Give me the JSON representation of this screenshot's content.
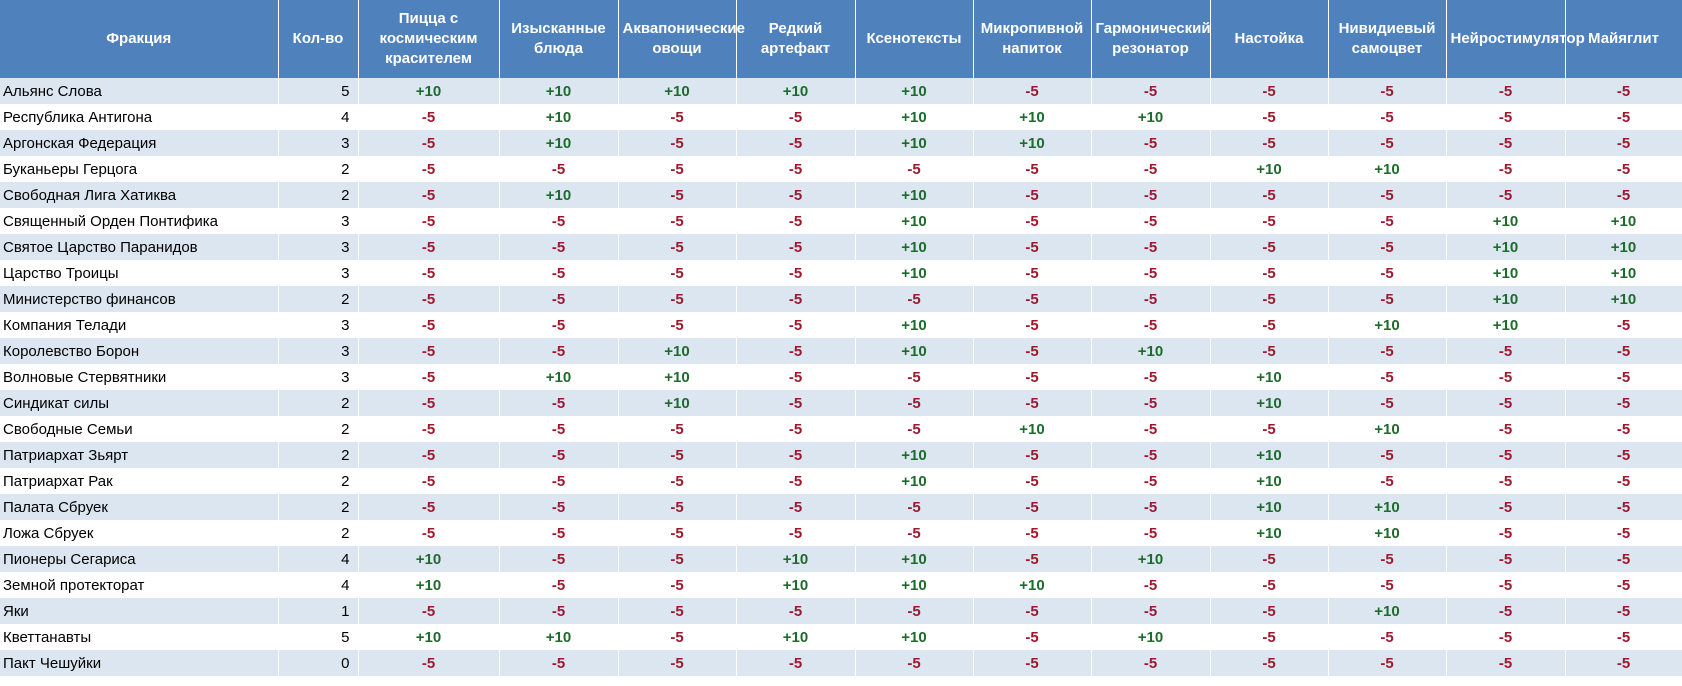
{
  "colors": {
    "header_bg": "#4f81bd",
    "row_alt": "#dce6f1",
    "positive": "#1e6b2e",
    "negative": "#a0182e"
  },
  "table": {
    "headers": [
      "Фракция",
      "Кол-во",
      "Пицца с космическим красителем",
      "Изысканные блюда",
      "Аквапонические овощи",
      "Редкий артефакт",
      "Ксенотексты",
      "Микропивной напиток",
      "Гармонический резонатор",
      "Настойка",
      "Нивидиевый самоцвет",
      "Нейростимулятор",
      "Майяглит"
    ],
    "rows": [
      {
        "faction": "Альянс Слова",
        "count": "5",
        "values": [
          "+10",
          "+10",
          "+10",
          "+10",
          "+10",
          "-5",
          "-5",
          "-5",
          "-5",
          "-5",
          "-5"
        ]
      },
      {
        "faction": "Республика Антигона",
        "count": "4",
        "values": [
          "-5",
          "+10",
          "-5",
          "-5",
          "+10",
          "+10",
          "+10",
          "-5",
          "-5",
          "-5",
          "-5"
        ]
      },
      {
        "faction": "Аргонская Федерация",
        "count": "3",
        "values": [
          "-5",
          "+10",
          "-5",
          "-5",
          "+10",
          "+10",
          "-5",
          "-5",
          "-5",
          "-5",
          "-5"
        ]
      },
      {
        "faction": "Буканьеры Герцога",
        "count": "2",
        "values": [
          "-5",
          "-5",
          "-5",
          "-5",
          "-5",
          "-5",
          "-5",
          "+10",
          "+10",
          "-5",
          "-5"
        ]
      },
      {
        "faction": "Свободная Лига Хатиква",
        "count": "2",
        "values": [
          "-5",
          "+10",
          "-5",
          "-5",
          "+10",
          "-5",
          "-5",
          "-5",
          "-5",
          "-5",
          "-5"
        ]
      },
      {
        "faction": "Священный Орден Понтифика",
        "count": "3",
        "values": [
          "-5",
          "-5",
          "-5",
          "-5",
          "+10",
          "-5",
          "-5",
          "-5",
          "-5",
          "+10",
          "+10"
        ]
      },
      {
        "faction": "Святое Царство Паранидов",
        "count": "3",
        "values": [
          "-5",
          "-5",
          "-5",
          "-5",
          "+10",
          "-5",
          "-5",
          "-5",
          "-5",
          "+10",
          "+10"
        ]
      },
      {
        "faction": "Царство Троицы",
        "count": "3",
        "values": [
          "-5",
          "-5",
          "-5",
          "-5",
          "+10",
          "-5",
          "-5",
          "-5",
          "-5",
          "+10",
          "+10"
        ]
      },
      {
        "faction": "Министерство финансов",
        "count": "2",
        "values": [
          "-5",
          "-5",
          "-5",
          "-5",
          "-5",
          "-5",
          "-5",
          "-5",
          "-5",
          "+10",
          "+10"
        ]
      },
      {
        "faction": "Компания Телади",
        "count": "3",
        "values": [
          "-5",
          "-5",
          "-5",
          "-5",
          "+10",
          "-5",
          "-5",
          "-5",
          "+10",
          "+10",
          "-5"
        ]
      },
      {
        "faction": "Королевство Борон",
        "count": "3",
        "values": [
          "-5",
          "-5",
          "+10",
          "-5",
          "+10",
          "-5",
          "+10",
          "-5",
          "-5",
          "-5",
          "-5"
        ]
      },
      {
        "faction": "Волновые Стервятники",
        "count": "3",
        "values": [
          "-5",
          "+10",
          "+10",
          "-5",
          "-5",
          "-5",
          "-5",
          "+10",
          "-5",
          "-5",
          "-5"
        ]
      },
      {
        "faction": "Синдикат силы",
        "count": "2",
        "values": [
          "-5",
          "-5",
          "+10",
          "-5",
          "-5",
          "-5",
          "-5",
          "+10",
          "-5",
          "-5",
          "-5"
        ]
      },
      {
        "faction": "Свободные Семьи",
        "count": "2",
        "values": [
          "-5",
          "-5",
          "-5",
          "-5",
          "-5",
          "+10",
          "-5",
          "-5",
          "+10",
          "-5",
          "-5"
        ]
      },
      {
        "faction": "Патриархат Зьярт",
        "count": "2",
        "values": [
          "-5",
          "-5",
          "-5",
          "-5",
          "+10",
          "-5",
          "-5",
          "+10",
          "-5",
          "-5",
          "-5"
        ]
      },
      {
        "faction": "Патриархат Рак",
        "count": "2",
        "values": [
          "-5",
          "-5",
          "-5",
          "-5",
          "+10",
          "-5",
          "-5",
          "+10",
          "-5",
          "-5",
          "-5"
        ]
      },
      {
        "faction": "Палата Сбруек",
        "count": "2",
        "values": [
          "-5",
          "-5",
          "-5",
          "-5",
          "-5",
          "-5",
          "-5",
          "+10",
          "+10",
          "-5",
          "-5"
        ]
      },
      {
        "faction": "Ложа Сбруек",
        "count": "2",
        "values": [
          "-5",
          "-5",
          "-5",
          "-5",
          "-5",
          "-5",
          "-5",
          "+10",
          "+10",
          "-5",
          "-5"
        ]
      },
      {
        "faction": "Пионеры Сегариса",
        "count": "4",
        "values": [
          "+10",
          "-5",
          "-5",
          "+10",
          "+10",
          "-5",
          "+10",
          "-5",
          "-5",
          "-5",
          "-5"
        ]
      },
      {
        "faction": "Земной протекторат",
        "count": "4",
        "values": [
          "+10",
          "-5",
          "-5",
          "+10",
          "+10",
          "+10",
          "-5",
          "-5",
          "-5",
          "-5",
          "-5"
        ]
      },
      {
        "faction": "Яки",
        "count": "1",
        "values": [
          "-5",
          "-5",
          "-5",
          "-5",
          "-5",
          "-5",
          "-5",
          "-5",
          "+10",
          "-5",
          "-5"
        ]
      },
      {
        "faction": "Кветтанавты",
        "count": "5",
        "values": [
          "+10",
          "+10",
          "-5",
          "+10",
          "+10",
          "-5",
          "+10",
          "-5",
          "-5",
          "-5",
          "-5"
        ]
      },
      {
        "faction": "Пакт Чешуйки",
        "count": "0",
        "values": [
          "-5",
          "-5",
          "-5",
          "-5",
          "-5",
          "-5",
          "-5",
          "-5",
          "-5",
          "-5",
          "-5"
        ]
      }
    ]
  }
}
